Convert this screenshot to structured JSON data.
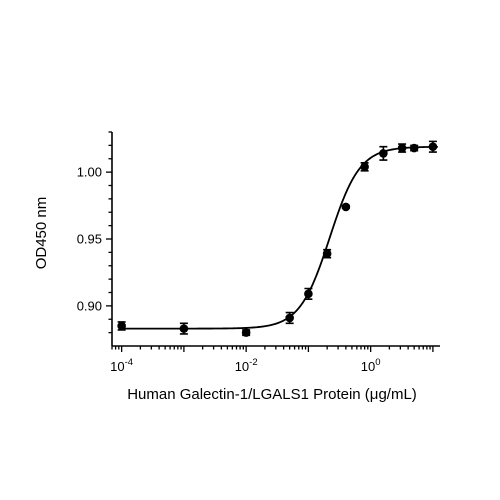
{
  "chart_data": {
    "type": "scatter",
    "xlabel": "Human Galectin-1/LGALS1 Protein (μg/mL)",
    "ylabel": "OD450 nm",
    "x_scale": "log10",
    "xlim": [
      7e-05,
      13
    ],
    "ylim": [
      0.87,
      1.03
    ],
    "x_ticks": [
      {
        "value": 0.0001,
        "base": "10",
        "exp": "-4"
      },
      {
        "value": 0.01,
        "base": "10",
        "exp": "-2"
      },
      {
        "value": 1,
        "base": "10",
        "exp": "0"
      }
    ],
    "y_ticks": [
      {
        "value": 0.9,
        "label": "0.90"
      },
      {
        "value": 0.95,
        "label": "0.95"
      },
      {
        "value": 1.0,
        "label": "1.00"
      }
    ],
    "series": [
      {
        "points": [
          {
            "x": 0.0001,
            "y": 0.885,
            "err": 0.003
          },
          {
            "x": 0.001,
            "y": 0.883,
            "err": 0.004
          },
          {
            "x": 0.01,
            "y": 0.88,
            "err": 0.002
          },
          {
            "x": 0.05,
            "y": 0.891,
            "err": 0.004
          },
          {
            "x": 0.1,
            "y": 0.909,
            "err": 0.004
          },
          {
            "x": 0.2,
            "y": 0.939,
            "err": 0.003
          },
          {
            "x": 0.4,
            "y": 0.974,
            "err": 0.001
          },
          {
            "x": 0.8,
            "y": 1.004,
            "err": 0.003
          },
          {
            "x": 1.6,
            "y": 1.014,
            "err": 0.005
          },
          {
            "x": 3.2,
            "y": 1.018,
            "err": 0.003
          },
          {
            "x": 5,
            "y": 1.018,
            "err": 0.002
          },
          {
            "x": 10,
            "y": 1.019,
            "err": 0.004
          }
        ],
        "fit": {
          "model": "4PL",
          "bottom": 0.883,
          "top": 1.019,
          "ec50": 0.22,
          "hill": 1.8
        }
      }
    ],
    "grid": false,
    "marker_color": "#000000",
    "line_color": "#000000"
  }
}
